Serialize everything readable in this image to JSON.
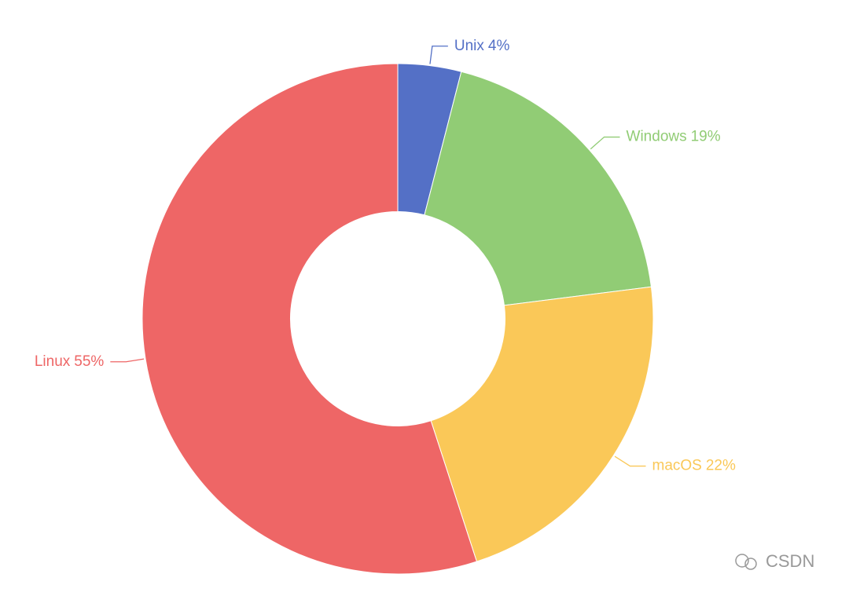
{
  "chart_data": {
    "type": "pie",
    "categories": [
      "Unix",
      "Windows",
      "macOS",
      "Linux"
    ],
    "values": [
      4,
      19,
      22,
      55
    ],
    "value_labels": [
      "4%",
      "19%",
      "22%",
      "55%"
    ],
    "colors": [
      "#5470c6",
      "#91cc75",
      "#fac858",
      "#ee6666"
    ],
    "inner_radius_ratio": 0.42
  },
  "watermark": "CSDN"
}
